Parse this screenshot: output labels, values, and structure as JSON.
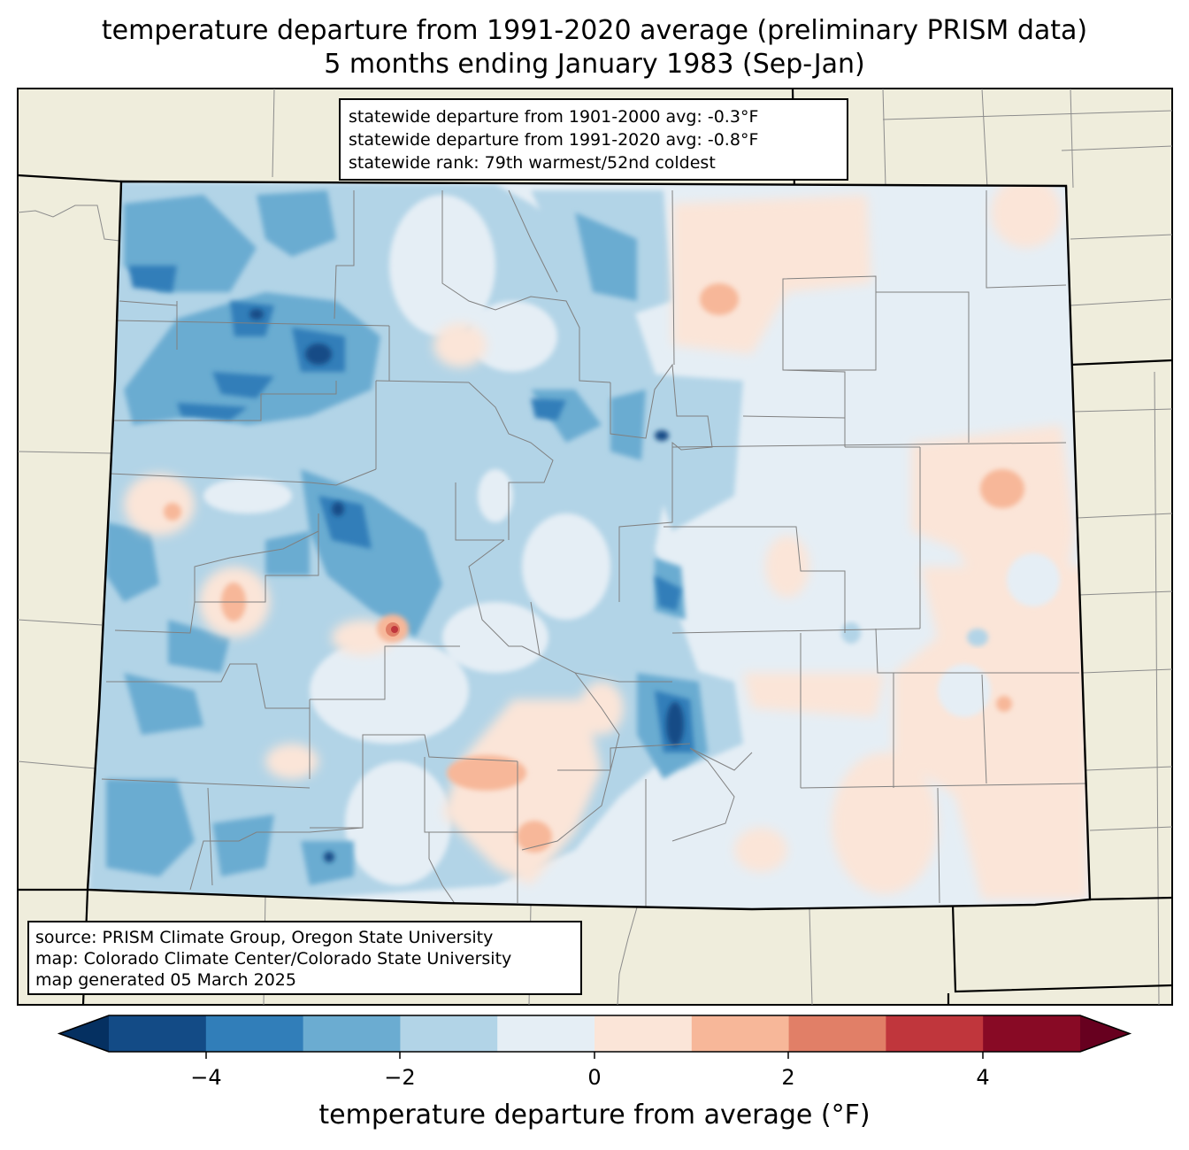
{
  "title": {
    "line1": "temperature departure from 1991-2020 average (preliminary PRISM data)",
    "line2": "5 months ending January 1983 (Sep-Jan)"
  },
  "stats": {
    "line1": "statewide departure from 1901-2000 avg: -0.3°F",
    "line2": "statewide departure from 1991-2020 avg: -0.8°F",
    "line3": "statewide rank: 79th warmest/52nd coldest"
  },
  "source": {
    "line1": "source: PRISM Climate Group, Oregon State University",
    "line2": "map: Colorado Climate Center/Colorado State University",
    "line3": "map generated 05 March 2025"
  },
  "colorbar": {
    "label": "temperature departure from average (°F)",
    "ticks": [
      "−4",
      "−2",
      "0",
      "2",
      "4"
    ],
    "bins": [
      {
        "range": "<-5",
        "color": "#053061"
      },
      {
        "range": "-5 to -4",
        "color": "#134b86"
      },
      {
        "range": "-4 to -3",
        "color": "#317eb9"
      },
      {
        "range": "-3 to -2",
        "color": "#6bacd1"
      },
      {
        "range": "-2 to -1",
        "color": "#b2d4e7"
      },
      {
        "range": "-1 to 0",
        "color": "#e5eef5"
      },
      {
        "range": "0 to 1",
        "color": "#fbe5d8"
      },
      {
        "range": "1 to 2",
        "color": "#f7b799"
      },
      {
        "range": "2 to 3",
        "color": "#e17f67"
      },
      {
        "range": "3 to 4",
        "color": "#c0363c"
      },
      {
        "range": "4 to 5",
        "color": "#880a25"
      },
      {
        "range": ">5",
        "color": "#67001f"
      }
    ]
  },
  "colors": {
    "land_background": "#efeddc",
    "state_border": "#000000",
    "county_border": "#808080"
  }
}
